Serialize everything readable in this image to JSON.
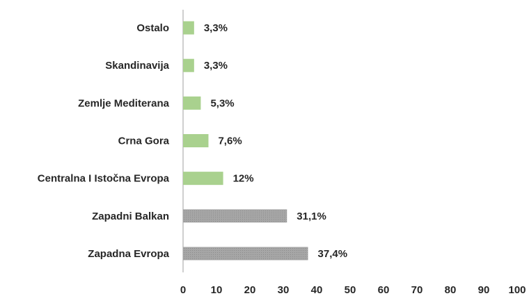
{
  "chart_data": {
    "type": "hbar",
    "categories": [
      "Ostalo",
      "Skandinavija",
      "Zemlje Mediterana",
      "Crna Gora",
      "Centralna I Istočna Evropa",
      "Zapadni Balkan",
      "Zapadna Evropa"
    ],
    "values": [
      3.3,
      3.3,
      5.3,
      7.6,
      12,
      31.1,
      37.4
    ],
    "value_labels": [
      "3,3%",
      "3,3%",
      "5,3%",
      "7,6%",
      "12%",
      "31,1%",
      "37,4%"
    ],
    "colors": [
      "#a9d18e",
      "#a9d18e",
      "#a9d18e",
      "#a9d18e",
      "#a9d18e",
      "#a6a6a6",
      "#a6a6a6"
    ],
    "xlim": [
      0,
      100
    ],
    "xticks": [
      0,
      10,
      20,
      30,
      40,
      50,
      60,
      70,
      80,
      90,
      100
    ],
    "grid": false
  }
}
